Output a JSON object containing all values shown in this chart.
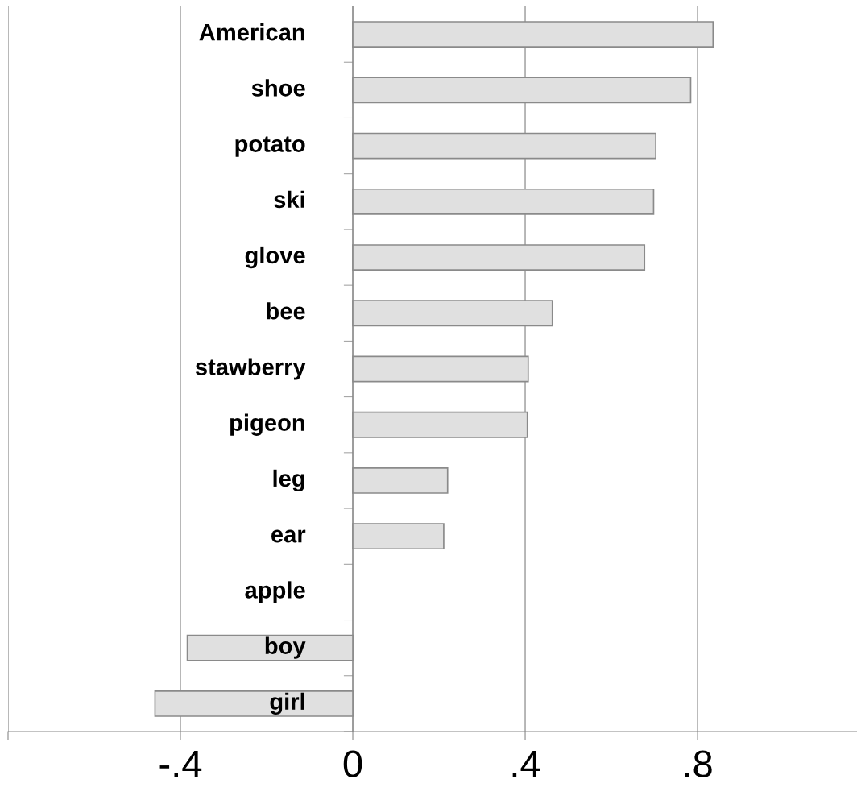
{
  "chart_data": {
    "type": "bar",
    "orientation": "horizontal",
    "categories": [
      "American",
      "shoe",
      "potato",
      "ski",
      "glove",
      "bee",
      "stawberry",
      "pigeon",
      "leg",
      "ear",
      "apple",
      "boy",
      "girl"
    ],
    "values": [
      0.836,
      0.784,
      0.703,
      0.698,
      0.677,
      0.463,
      0.407,
      0.405,
      0.22,
      0.211,
      0,
      -0.384,
      -0.459
    ],
    "color": "#e0e0e0",
    "xlim": [
      -0.8,
      1.17
    ],
    "xticks": [
      {
        "value": -0.8,
        "label": null
      },
      {
        "value": -0.4,
        "label": "-.4"
      },
      {
        "value": 0,
        "label": "0"
      },
      {
        "value": 0.4,
        "label": ".4"
      },
      {
        "value": 0.8,
        "label": ".8"
      }
    ],
    "grid": "x"
  }
}
